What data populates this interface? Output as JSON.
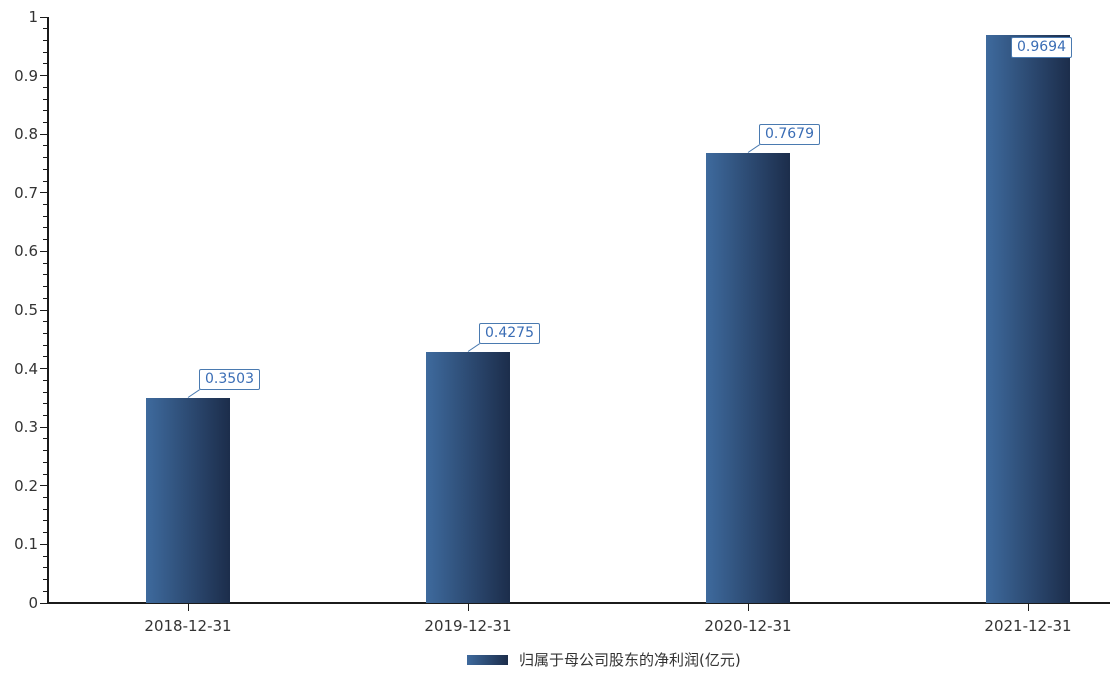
{
  "chart_data": {
    "type": "bar",
    "title": "",
    "categories": [
      "2018-12-31",
      "2019-12-31",
      "2020-12-31",
      "2021-12-31"
    ],
    "values": [
      0.3503,
      0.4275,
      0.7679,
      0.9694
    ],
    "value_labels": [
      "0.3503",
      "0.4275",
      "0.7679",
      "0.9694"
    ],
    "series_name": "归属于母公司股东的净利润(亿元)",
    "xlabel": "",
    "ylabel": "",
    "ylim": [
      0,
      1
    ],
    "y_tick_labels": [
      "0",
      "0.1",
      "0.2",
      "0.3",
      "0.4",
      "0.5",
      "0.6",
      "0.7",
      "0.8",
      "0.9",
      "1"
    ],
    "y_minor_tick_step": 0.02,
    "grid": "off",
    "legend_position": "bottom-center",
    "colors": {
      "bar_gradient_start": "#3e6a9d",
      "bar_gradient_end": "#1c2d4b",
      "axis_line": "#1b1b1b",
      "tick_label": "#333333",
      "value_label_text": "#3a6db5",
      "value_label_border": "#4a7ab0",
      "value_label_bg": "#ffffff"
    }
  }
}
